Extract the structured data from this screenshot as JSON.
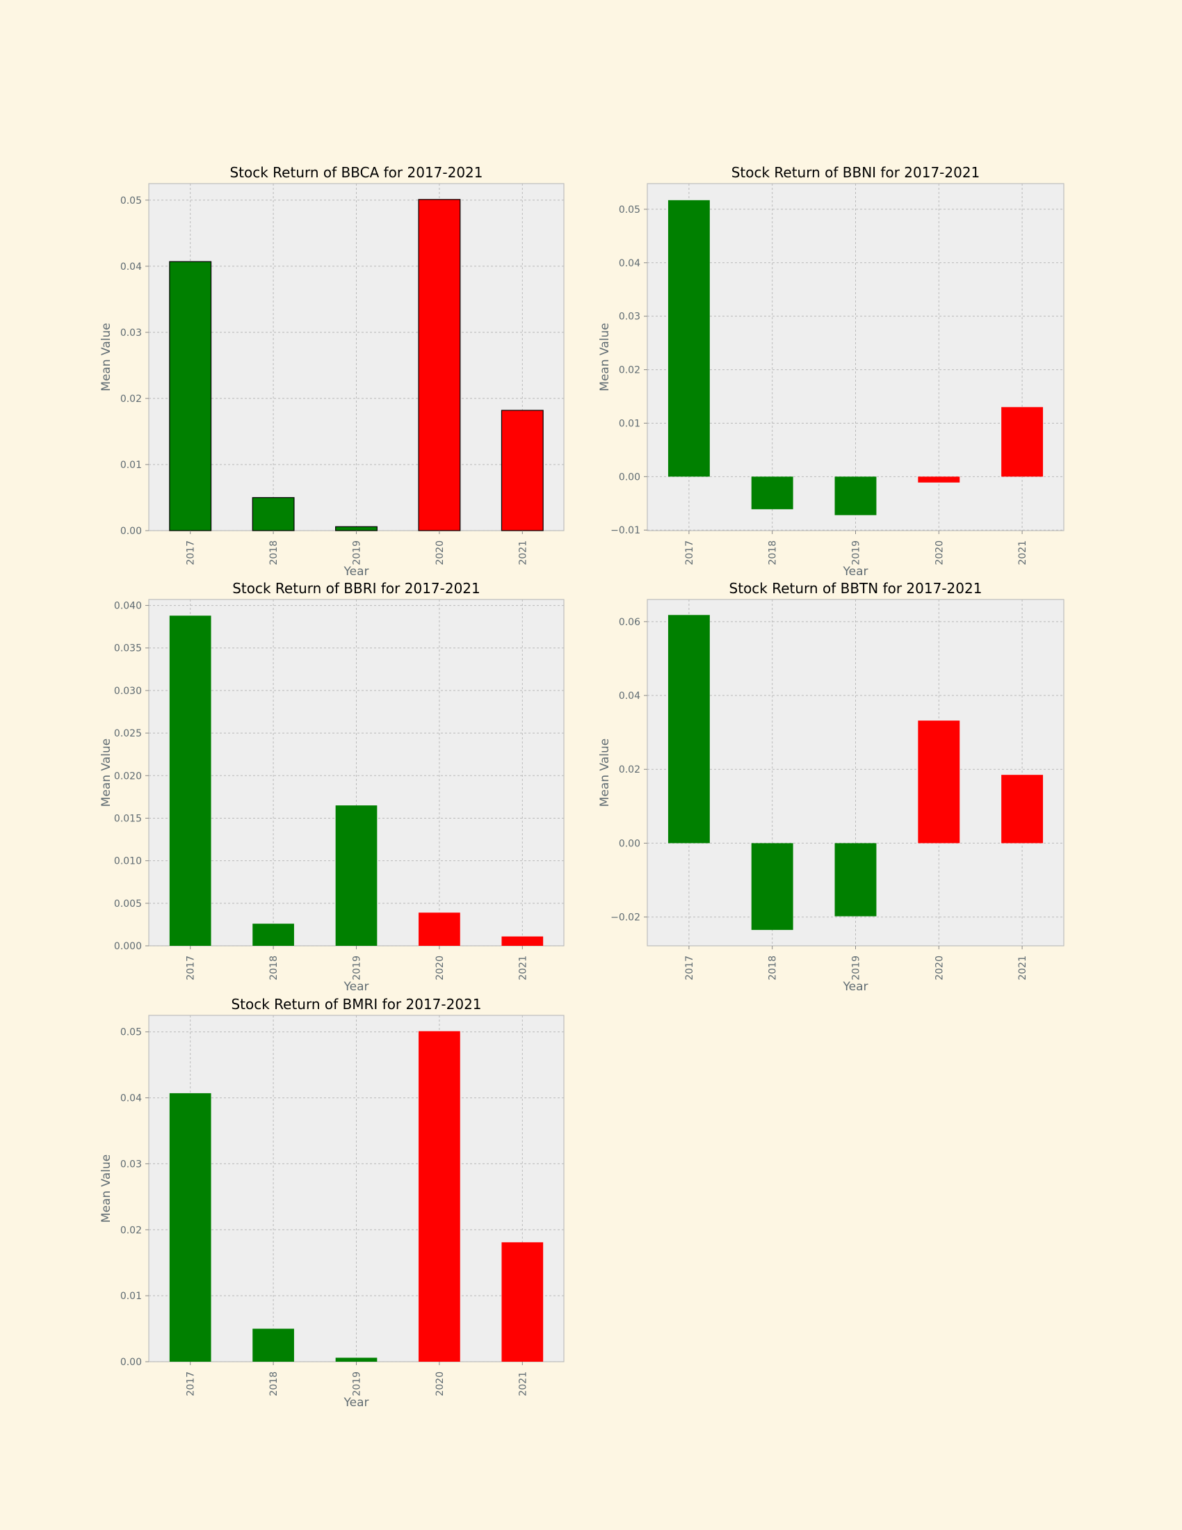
{
  "colors": {
    "positive_early": "#008000",
    "recent": "#ff0000",
    "background": "#fdf6e3",
    "plot_background": "#eeeeee"
  },
  "chart_data": [
    {
      "type": "bar",
      "title": "Stock Return of BBCA for 2017-2021",
      "xlabel": "Year",
      "ylabel": "Mean Value",
      "categories": [
        "2017",
        "2018",
        "2019",
        "2020",
        "2021"
      ],
      "values": [
        0.0407,
        0.005,
        0.0006,
        0.0501,
        0.0182
      ],
      "bar_colors": [
        "#008000",
        "#008000",
        "#008000",
        "#ff0000",
        "#ff0000"
      ],
      "ylim": [
        0,
        0.0525
      ],
      "yticks": [
        0.0,
        0.01,
        0.02,
        0.03,
        0.04,
        0.05
      ],
      "ytick_labels": [
        "0.00",
        "0.01",
        "0.02",
        "0.03",
        "0.04",
        "0.05"
      ],
      "bar_edges": true,
      "grid": true
    },
    {
      "type": "bar",
      "title": "Stock Return of BBNI for 2017-2021",
      "xlabel": "Year",
      "ylabel": "Mean Value",
      "categories": [
        "2017",
        "2018",
        "2019",
        "2020",
        "2021"
      ],
      "values": [
        0.0517,
        -0.0061,
        -0.0072,
        -0.0011,
        0.013
      ],
      "bar_colors": [
        "#008000",
        "#008000",
        "#008000",
        "#ff0000",
        "#ff0000"
      ],
      "ylim": [
        -0.0101,
        0.0548
      ],
      "yticks": [
        -0.01,
        0.0,
        0.01,
        0.02,
        0.03,
        0.04,
        0.05
      ],
      "ytick_labels": [
        "−0.01",
        "0.00",
        "0.01",
        "0.02",
        "0.03",
        "0.04",
        "0.05"
      ],
      "bar_edges": false,
      "grid": true
    },
    {
      "type": "bar",
      "title": "Stock Return of BBRI for 2017-2021",
      "xlabel": "Year",
      "ylabel": "Mean Value",
      "categories": [
        "2017",
        "2018",
        "2019",
        "2020",
        "2021"
      ],
      "values": [
        0.0388,
        0.0026,
        0.0165,
        0.0039,
        0.0011
      ],
      "bar_colors": [
        "#008000",
        "#008000",
        "#008000",
        "#ff0000",
        "#ff0000"
      ],
      "ylim": [
        0,
        0.0407
      ],
      "yticks": [
        0.0,
        0.005,
        0.01,
        0.015,
        0.02,
        0.025,
        0.03,
        0.035,
        0.04
      ],
      "ytick_labels": [
        "0.000",
        "0.005",
        "0.010",
        "0.015",
        "0.020",
        "0.025",
        "0.030",
        "0.035",
        "0.040"
      ],
      "bar_edges": false,
      "grid": true
    },
    {
      "type": "bar",
      "title": "Stock Return of BBTN for 2017-2021",
      "xlabel": "Year",
      "ylabel": "Mean Value",
      "categories": [
        "2017",
        "2018",
        "2019",
        "2020",
        "2021"
      ],
      "values": [
        0.0618,
        -0.0235,
        -0.0198,
        0.0332,
        0.0185
      ],
      "bar_colors": [
        "#008000",
        "#008000",
        "#008000",
        "#ff0000",
        "#ff0000"
      ],
      "ylim": [
        -0.0278,
        0.066
      ],
      "yticks": [
        -0.02,
        0.0,
        0.02,
        0.04,
        0.06
      ],
      "ytick_labels": [
        "−0.02",
        "0.00",
        "0.02",
        "0.04",
        "0.06"
      ],
      "bar_edges": false,
      "grid": true
    },
    {
      "type": "bar",
      "title": "Stock Return of BMRI for 2017-2021",
      "xlabel": "Year",
      "ylabel": "Mean Value",
      "categories": [
        "2017",
        "2018",
        "2019",
        "2020",
        "2021"
      ],
      "values": [
        0.0407,
        0.005,
        0.0006,
        0.0501,
        0.0181
      ],
      "bar_colors": [
        "#008000",
        "#008000",
        "#008000",
        "#ff0000",
        "#ff0000"
      ],
      "ylim": [
        0,
        0.0525
      ],
      "yticks": [
        0.0,
        0.01,
        0.02,
        0.03,
        0.04,
        0.05
      ],
      "ytick_labels": [
        "0.00",
        "0.01",
        "0.02",
        "0.03",
        "0.04",
        "0.05"
      ],
      "bar_edges": false,
      "grid": true
    }
  ]
}
